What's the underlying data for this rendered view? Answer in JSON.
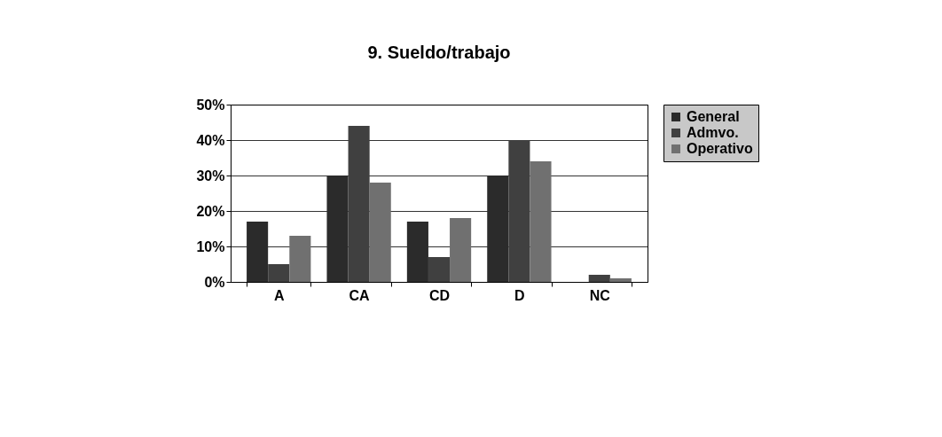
{
  "chart_data": {
    "type": "bar",
    "title": "9. Sueldo/trabajo",
    "categories": [
      "A",
      "CA",
      "CD",
      "D",
      "NC"
    ],
    "series": [
      {
        "name": "General",
        "color": "#2b2b2b",
        "values": [
          17,
          30,
          17,
          30,
          0
        ]
      },
      {
        "name": "Admvo.",
        "color": "#404040",
        "values": [
          5,
          44,
          7,
          40,
          2
        ]
      },
      {
        "name": "Operativo",
        "color": "#707070",
        "values": [
          13,
          28,
          18,
          34,
          1
        ]
      }
    ],
    "ylim": [
      0,
      50
    ],
    "yticks": [
      {
        "value": 0,
        "label": "0%"
      },
      {
        "value": 10,
        "label": "10%"
      },
      {
        "value": 20,
        "label": "20%"
      },
      {
        "value": 30,
        "label": "30%"
      },
      {
        "value": 40,
        "label": "40%"
      },
      {
        "value": 50,
        "label": "50%"
      }
    ],
    "grid": "y",
    "legend": "right"
  }
}
